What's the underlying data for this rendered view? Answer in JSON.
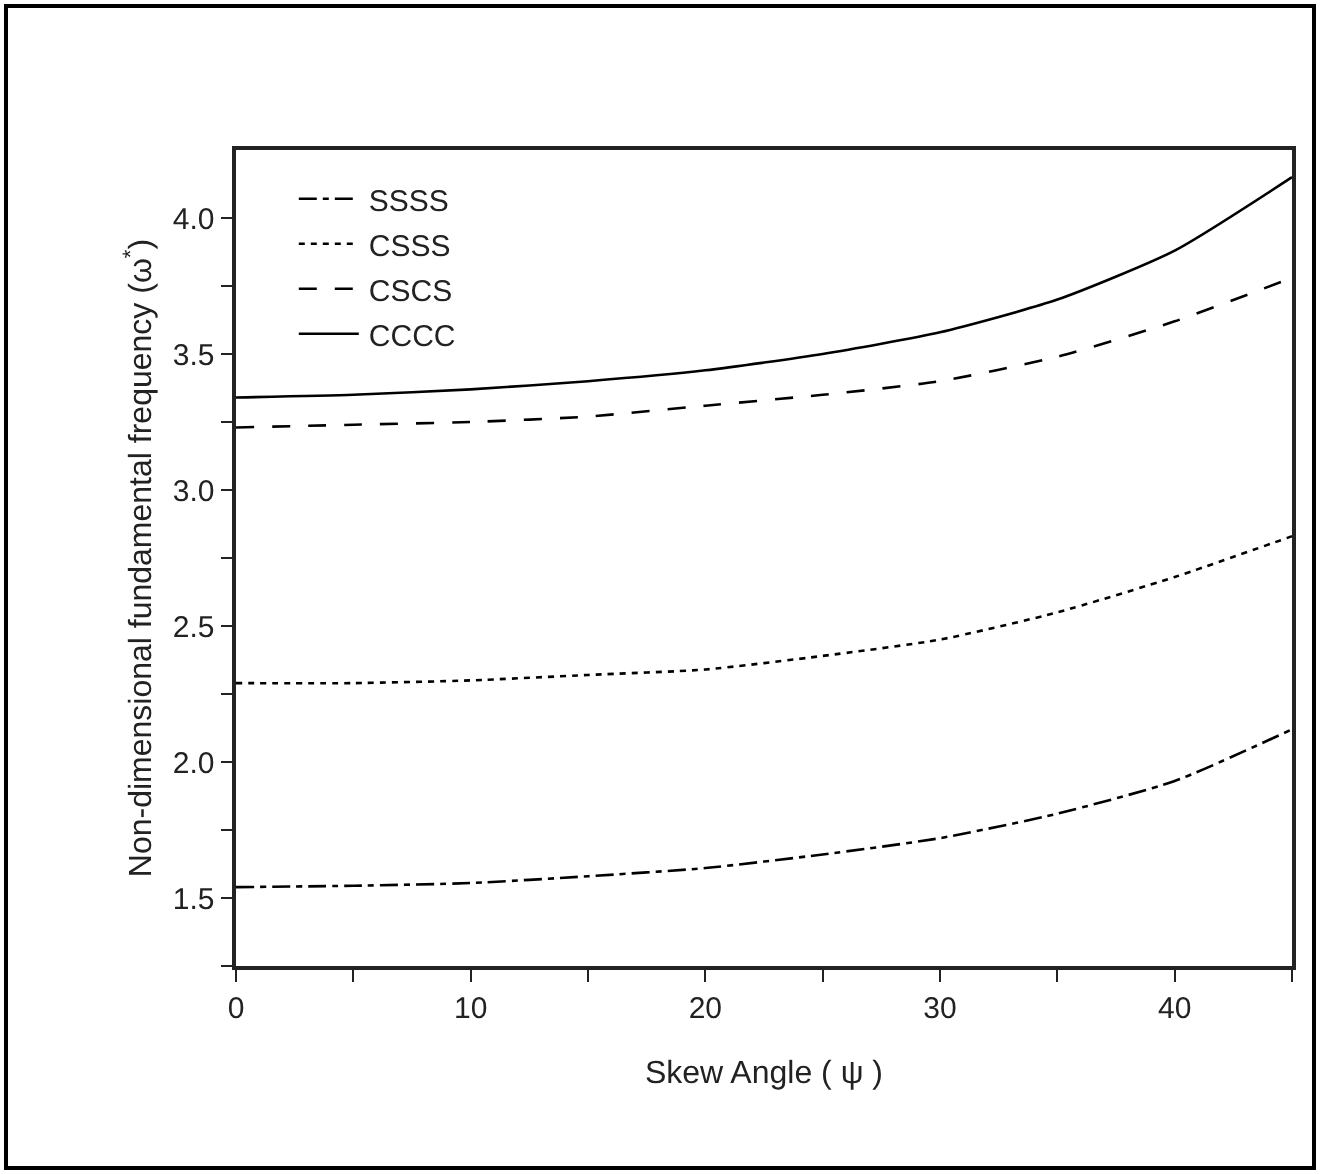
{
  "chart_data": {
    "type": "line",
    "xlabel": "Skew Angle ( ψ )",
    "ylabel": "Non-dimensional fundamental frequency (ω$^{*}$)",
    "x": [
      0,
      5,
      10,
      15,
      20,
      25,
      30,
      35,
      40,
      45
    ],
    "series": [
      {
        "name": "SSSS",
        "color": "#000000",
        "line_style": "dashdot",
        "values": [
          1.54,
          1.545,
          1.555,
          1.58,
          1.61,
          1.66,
          1.72,
          1.81,
          1.93,
          2.12
        ]
      },
      {
        "name": "CSSS",
        "color": "#000000",
        "line_style": "dotted",
        "values": [
          2.29,
          2.29,
          2.3,
          2.32,
          2.34,
          2.39,
          2.45,
          2.55,
          2.68,
          2.83
        ]
      },
      {
        "name": "CSCS",
        "color": "#000000",
        "line_style": "dashed",
        "values": [
          3.23,
          3.24,
          3.25,
          3.27,
          3.31,
          3.35,
          3.4,
          3.49,
          3.62,
          3.78
        ]
      },
      {
        "name": "CCCC",
        "color": "#000000",
        "line_style": "solid",
        "values": [
          3.34,
          3.35,
          3.37,
          3.4,
          3.44,
          3.5,
          3.58,
          3.7,
          3.88,
          4.15
        ]
      }
    ],
    "xlim": [
      0,
      45
    ],
    "xticks": [
      0,
      {
        "value": 5,
        "label": null
      },
      10,
      {
        "value": 15,
        "label": null
      },
      20,
      {
        "value": 25,
        "label": null
      },
      30,
      {
        "value": 35,
        "label": null
      },
      40,
      {
        "value": 45,
        "label": null
      }
    ],
    "ylim": [
      1.25,
      4.25
    ],
    "yticks": [
      {
        "value": 1.25,
        "label": null
      },
      {
        "value": 1.5,
        "label": "1.5"
      },
      {
        "value": 1.75,
        "label": null
      },
      {
        "value": 2,
        "label": "2.0"
      },
      {
        "value": 2.25,
        "label": null
      },
      {
        "value": 2.5,
        "label": "2.5"
      },
      {
        "value": 2.75,
        "label": null
      },
      {
        "value": 3,
        "label": "3.0"
      },
      {
        "value": 3.25,
        "label": null
      },
      {
        "value": 3.5,
        "label": "3.5"
      },
      {
        "value": 3.75,
        "label": null
      },
      {
        "value": 4,
        "label": "4.0"
      }
    ],
    "grid": false,
    "legend": "top left",
    "marker": "none"
  }
}
